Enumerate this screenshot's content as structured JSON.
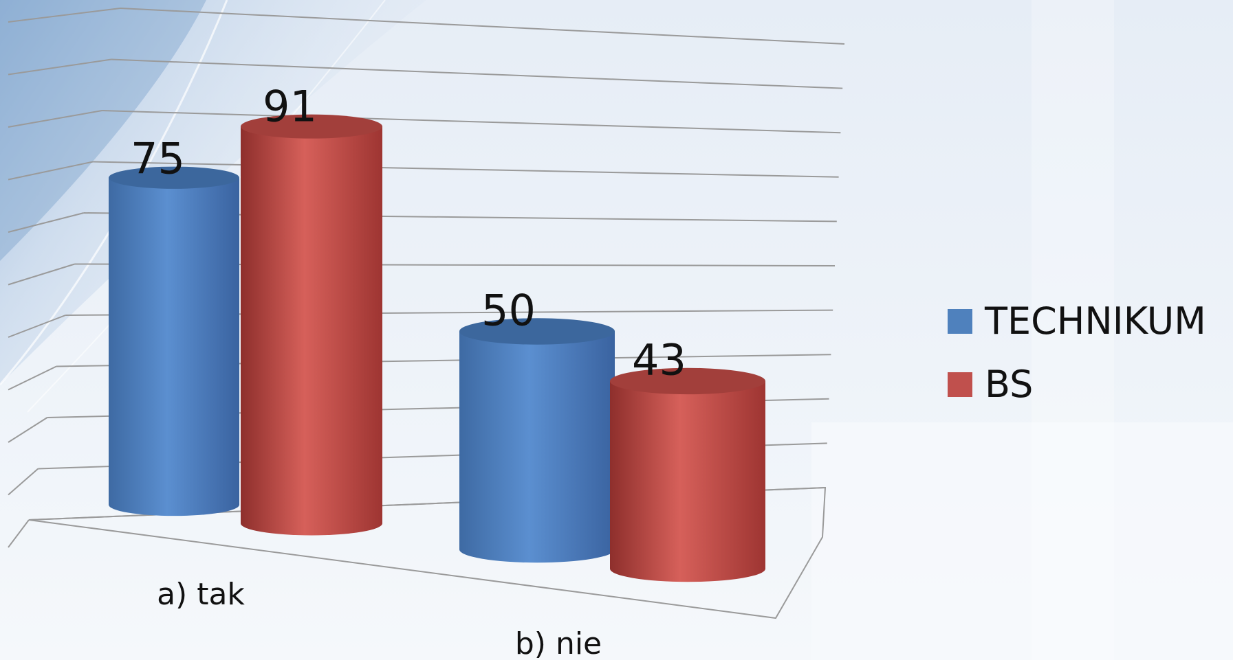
{
  "chart_data": {
    "type": "bar",
    "style": "3d-cylinder",
    "categories": [
      "a) tak",
      "b) nie"
    ],
    "series": [
      {
        "name": "TECHNIKUM",
        "values": [
          75,
          50
        ],
        "color": "#4f81bd"
      },
      {
        "name": "BS",
        "values": [
          91,
          43
        ],
        "color": "#c0504d"
      }
    ],
    "ylim": [
      0,
      100
    ],
    "grid": true,
    "legend_position": "right",
    "data_labels": true
  },
  "legend": {
    "items": [
      {
        "label": "TECHNIKUM",
        "color": "#4f81bd"
      },
      {
        "label": "BS",
        "color": "#c0504d"
      }
    ]
  },
  "colors": {
    "background": "#e9eff7",
    "gridline": "#9a9a9a"
  }
}
